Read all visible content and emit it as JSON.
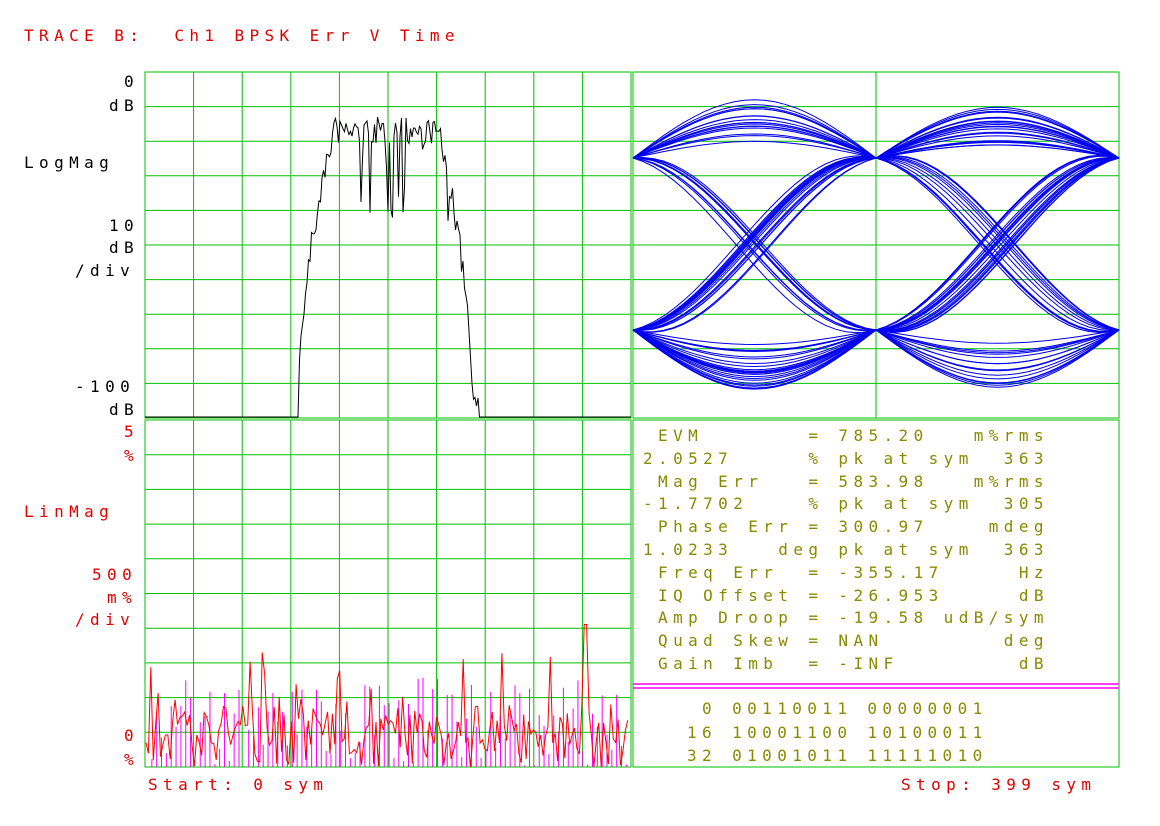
{
  "title": "TRACE B:  Ch1 BPSK Err V Time",
  "colors": {
    "grid": "#00c000",
    "text_red": "#e00000",
    "text_olive": "#8a8a00",
    "eye": "#0000ee",
    "err_red": "#ff0000",
    "err_magenta": "#ff00ff",
    "spectrum": "#000000"
  },
  "top_left": {
    "ref_value": "0",
    "ref_unit": "dB",
    "format": "LogMag",
    "scale_value": "10",
    "scale_unit": "dB",
    "scale_per": "/div",
    "bottom_value": "-100",
    "bottom_unit": "dB"
  },
  "bottom_left": {
    "ref_value": "5",
    "ref_unit": "%",
    "format": "LinMag",
    "scale_value": "500",
    "scale_unit": "m%",
    "scale_per": "/div",
    "bottom_value": "0",
    "bottom_unit": "%"
  },
  "footer": {
    "start": "Start: 0 sym",
    "stop": "Stop: 399 sym"
  },
  "stats": [
    " EVM       = 785.20   m%rms",
    "2.0527     % pk at sym  363",
    " Mag Err   = 583.98   m%rms",
    "-1.7702    % pk at sym  305",
    " Phase Err = 300.97    mdeg",
    "1.0233   deg pk at sym  363",
    " Freq Err  = -355.17     Hz",
    " IQ Offset = -26.953     dB",
    " Amp Droop = -19.58 udB/sym",
    " Quad Skew = NAN        deg",
    " Gain Imb  = -INF        dB"
  ],
  "bits": [
    " 0 00110011 00000001",
    "16 10001100 10100011",
    "32 01001011 11111010"
  ],
  "chart_data": [
    {
      "type": "line",
      "name_shown": "",
      "format": "LogMag",
      "ylim": [
        -100,
        0
      ],
      "y_unit": "dB",
      "y_per_div": 10,
      "grid": true,
      "description_values": {
        "noise_floor_db": -100,
        "passband_peak_db": -13,
        "passband_dips_db": -45
      }
    },
    {
      "type": "line",
      "format": "Eye diagram (I)",
      "grid": true,
      "levels": [
        1,
        -1
      ],
      "symbols_shown": 2
    },
    {
      "type": "bar",
      "format": "LinMag",
      "ylim": [
        0,
        5
      ],
      "y_unit": "%",
      "y_per_div": 0.5,
      "xlim": [
        0,
        399
      ],
      "x_unit": "sym",
      "grid": true,
      "peak_value": 2.0527,
      "peak_symbol": 363,
      "rms_value": 0.7852
    }
  ]
}
